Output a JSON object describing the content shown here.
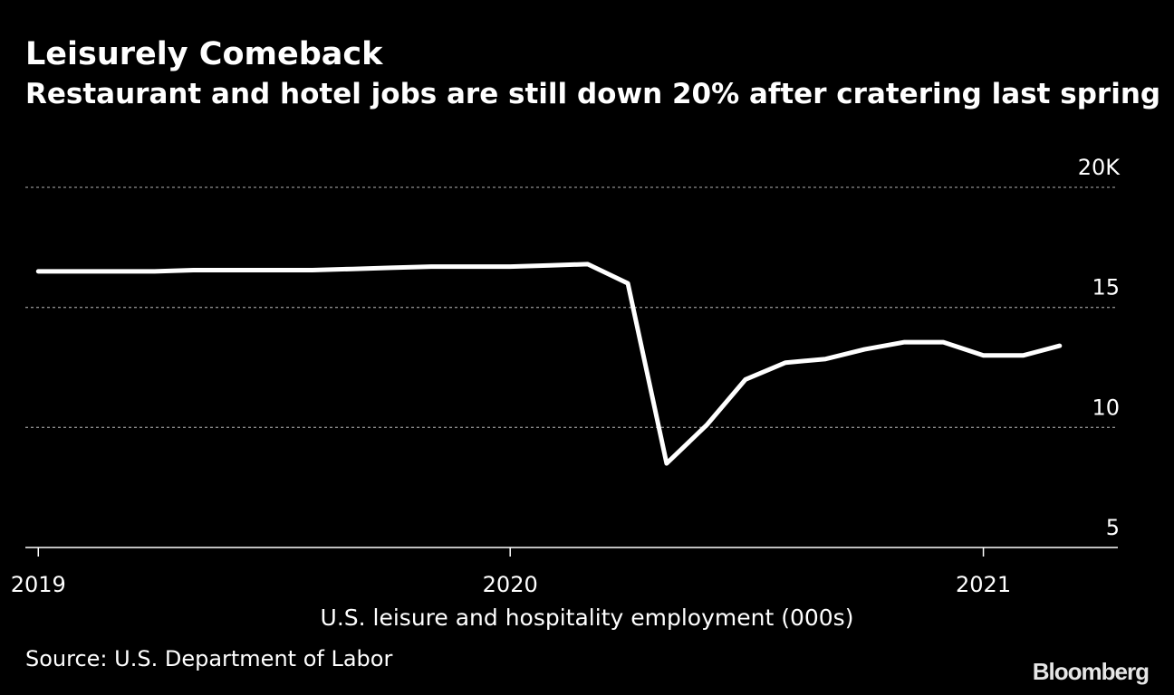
{
  "header": {
    "title": "Leisurely Comeback",
    "subtitle": "Restaurant and hotel jobs are still down 20% after cratering last spring"
  },
  "footer": {
    "source": "Source: U.S. Department of Labor",
    "logo": "Bloomberg"
  },
  "colors": {
    "background": "#000000",
    "line": "#ffffff",
    "grid": "#8c8c8c",
    "text": "#ffffff"
  },
  "chart_data": {
    "type": "line",
    "xlabel": "U.S. leisure and hospitality employment (000s)",
    "ylabel": "",
    "ylim": [
      5,
      20
    ],
    "xlim": [
      "2018-12-22",
      "2021-04-15"
    ],
    "grid": true,
    "y_axis_side": "right",
    "y_ticks": [
      {
        "value": 20,
        "label": "20K"
      },
      {
        "value": 15,
        "label": "15"
      },
      {
        "value": 10,
        "label": "10"
      },
      {
        "value": 5,
        "label": "5"
      }
    ],
    "x_ticks": [
      {
        "date": "2019-01-01",
        "label": "2019"
      },
      {
        "date": "2020-01-01",
        "label": "2020"
      },
      {
        "date": "2021-01-01",
        "label": "2021"
      }
    ],
    "series": [
      {
        "x": [
          "2019-01-01",
          "2019-02-01",
          "2019-03-01",
          "2019-04-01",
          "2019-05-01",
          "2019-06-01",
          "2019-07-01",
          "2019-08-01",
          "2019-09-01",
          "2019-10-01",
          "2019-11-01",
          "2019-12-01",
          "2020-01-01",
          "2020-02-01",
          "2020-03-01",
          "2020-04-01",
          "2020-05-01",
          "2020-06-01",
          "2020-07-01",
          "2020-08-01",
          "2020-09-01",
          "2020-10-01",
          "2020-11-01",
          "2020-12-01",
          "2021-01-01",
          "2021-02-01",
          "2021-03-01"
        ],
        "values": [
          16.5,
          16.5,
          16.5,
          16.5,
          16.55,
          16.55,
          16.55,
          16.55,
          16.6,
          16.65,
          16.7,
          16.7,
          16.7,
          16.75,
          16.8,
          16.0,
          8.5,
          10.1,
          12.0,
          12.7,
          12.85,
          13.25,
          13.55,
          13.55,
          13.0,
          13.0,
          13.4
        ]
      }
    ]
  }
}
